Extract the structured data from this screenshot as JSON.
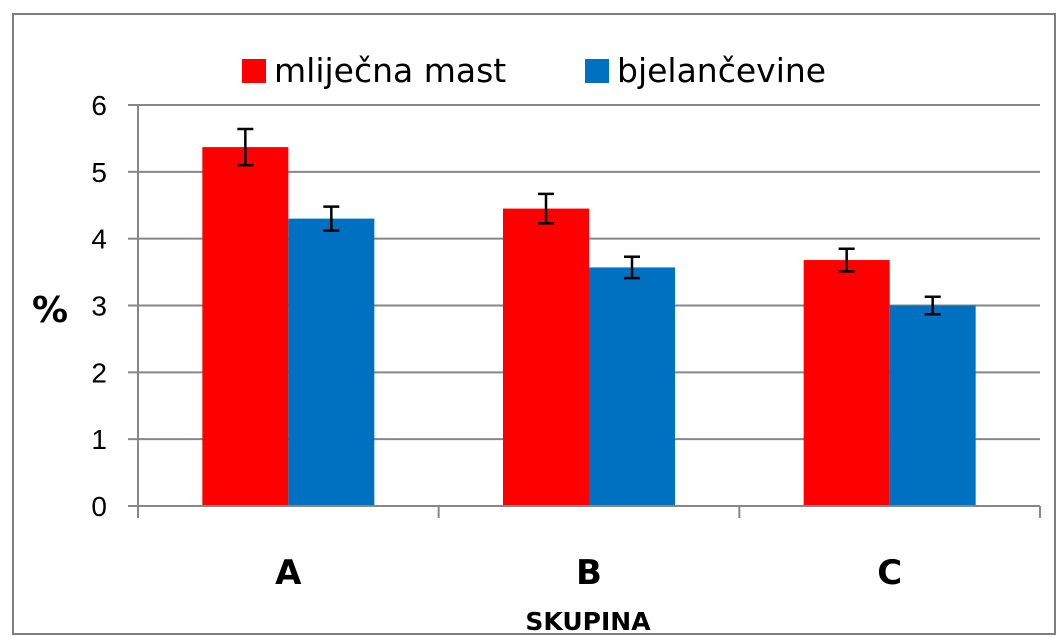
{
  "chart_data": {
    "type": "bar",
    "categories": [
      "A",
      "B",
      "C"
    ],
    "series": [
      {
        "name": "mliječna mast",
        "values": [
          5.37,
          4.45,
          3.68
        ],
        "errors": [
          0.27,
          0.22,
          0.17
        ],
        "color": "#ff0000"
      },
      {
        "name": "bjelančevine",
        "values": [
          4.3,
          3.57,
          3.0
        ],
        "errors": [
          0.18,
          0.16,
          0.13
        ],
        "color": "#0070c0"
      }
    ],
    "title": "",
    "xlabel": "SKUPINA",
    "ylabel": "%",
    "ylim": [
      0,
      6
    ],
    "yticks": [
      "0",
      "1",
      "2",
      "3",
      "4",
      "5",
      "6"
    ],
    "grid": true,
    "legend_position": "top"
  }
}
